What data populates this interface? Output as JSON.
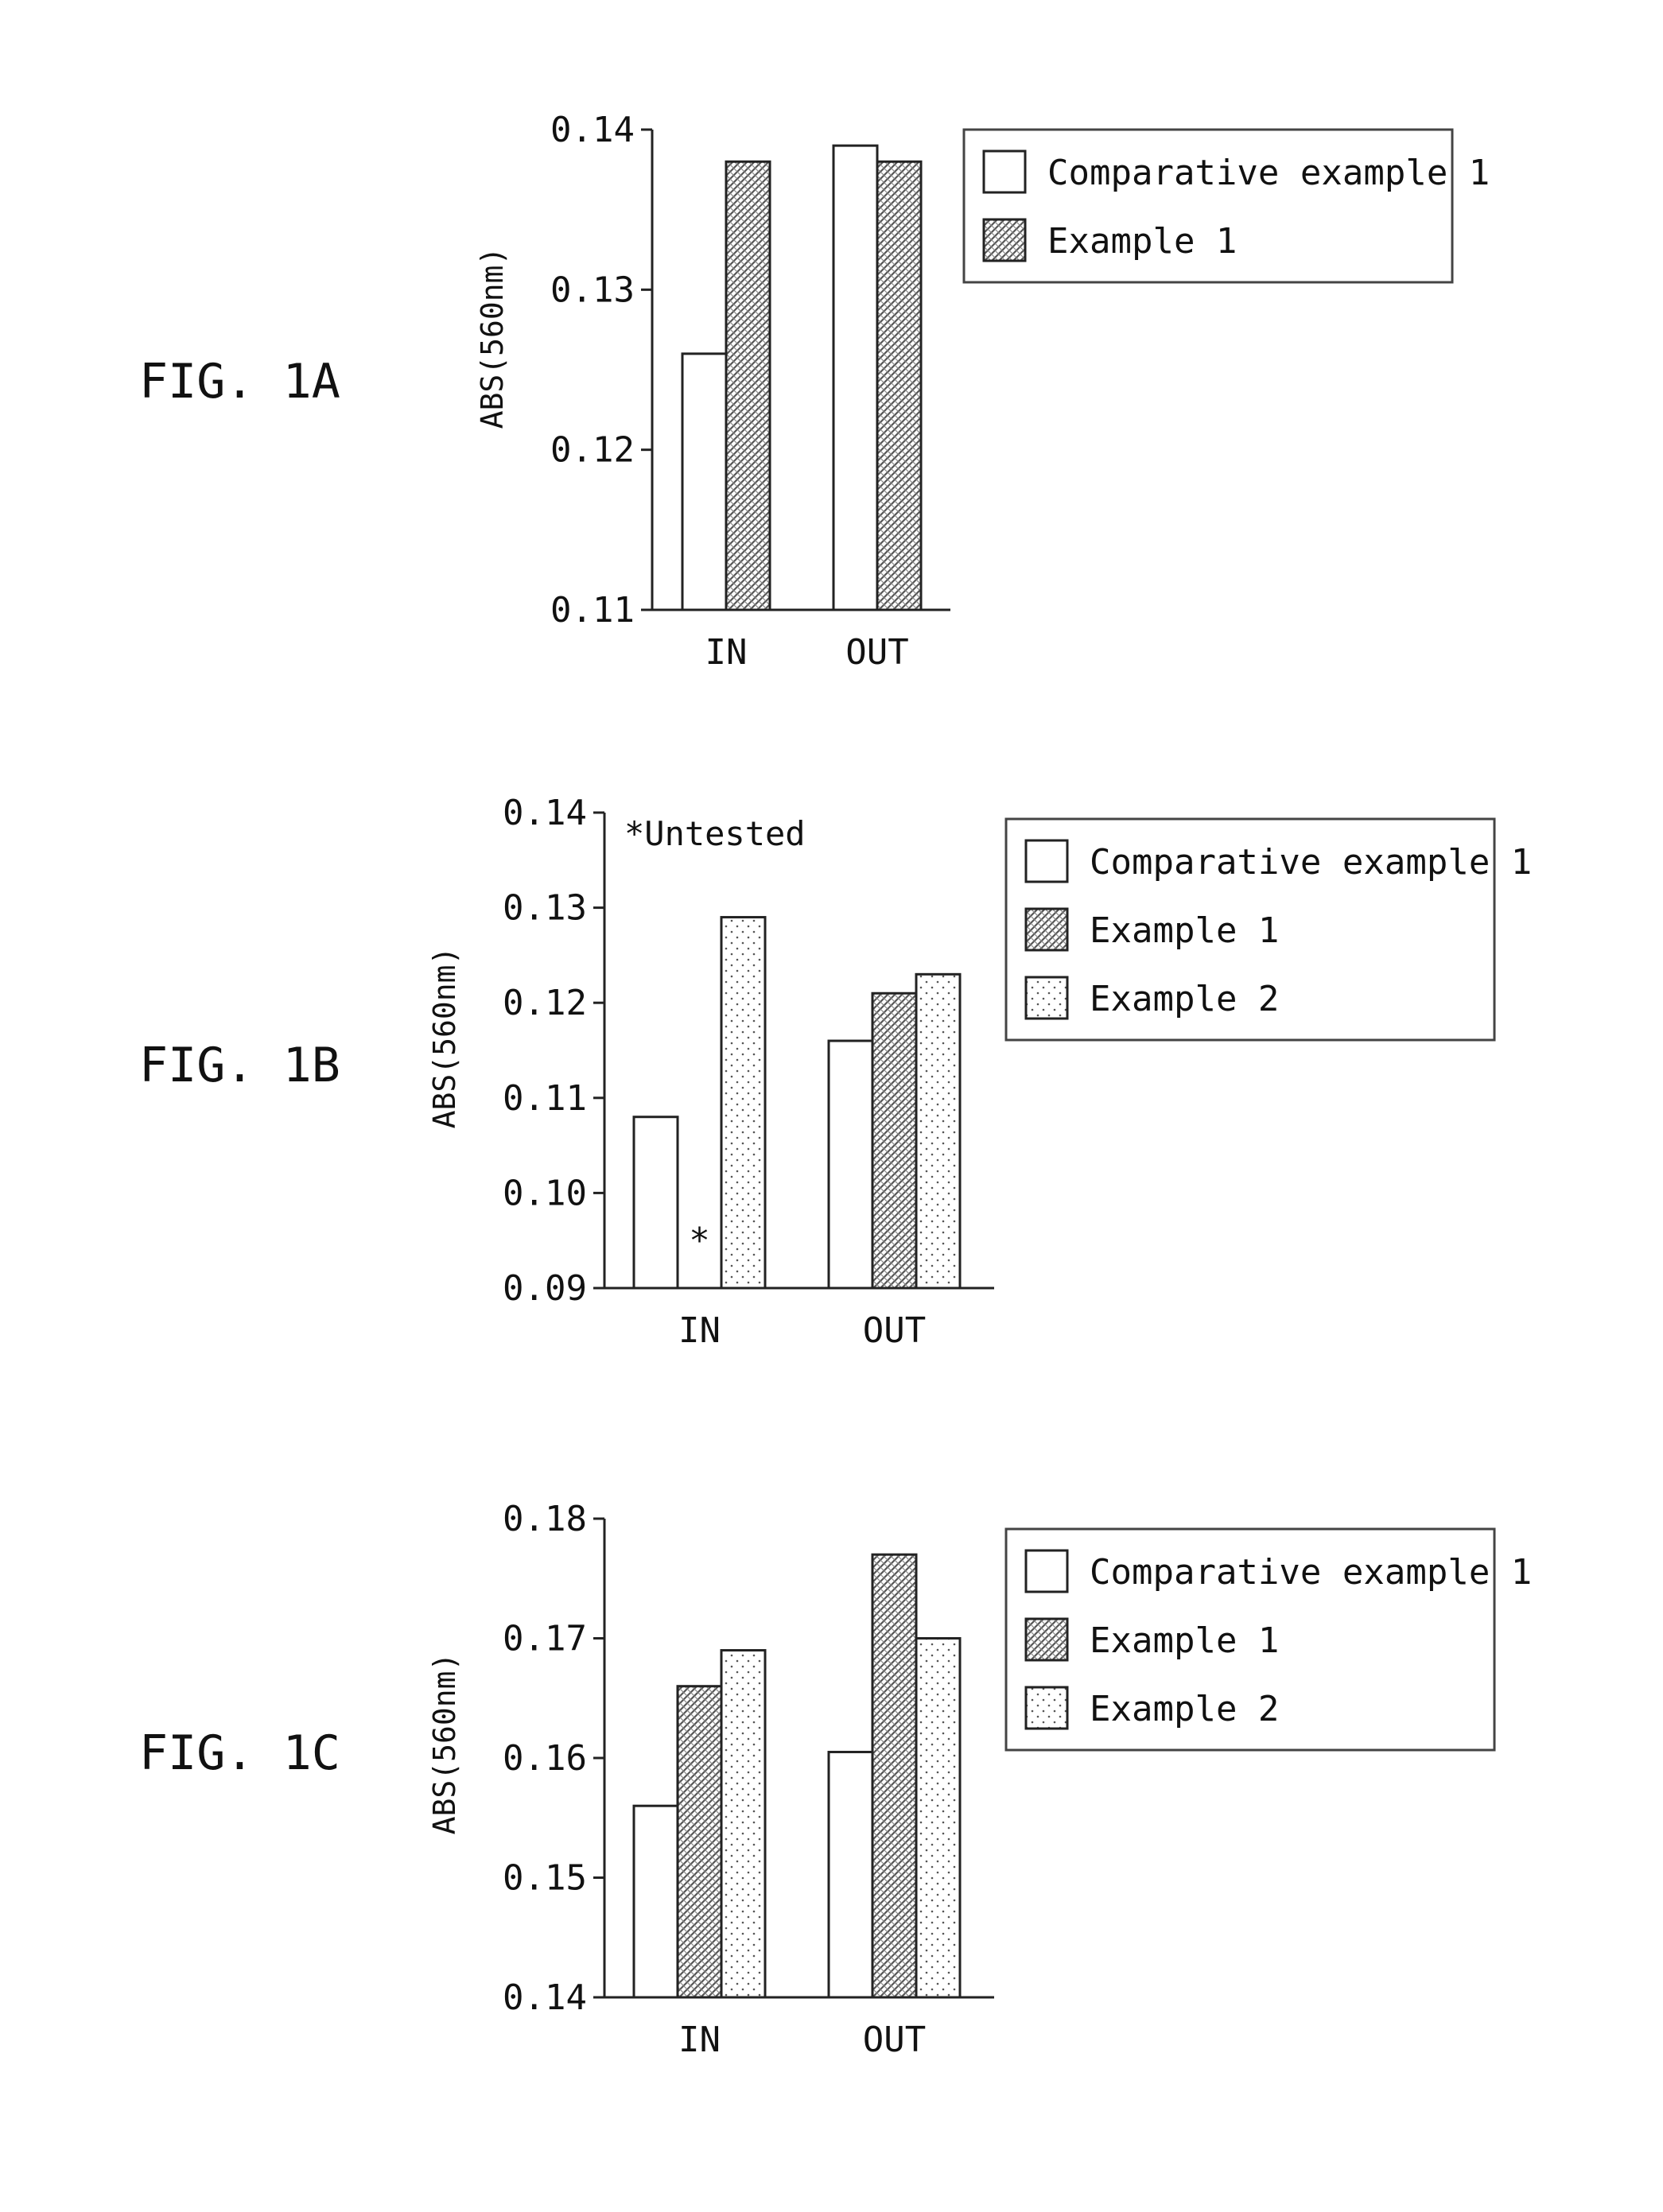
{
  "chart_data": [
    {
      "type": "bar",
      "figure_label": "FIG. 1A",
      "ylabel": "ABS(560nm)",
      "ylim": [
        0.11,
        0.14
      ],
      "yticks": [
        "0.14",
        "0.13",
        "0.12",
        "0.11"
      ],
      "categories": [
        "IN",
        "OUT"
      ],
      "series": [
        {
          "name": "Comparative example 1",
          "pattern": "blank",
          "values": [
            0.126,
            0.139
          ]
        },
        {
          "name": "Example 1",
          "pattern": "dense",
          "values": [
            0.138,
            0.138
          ]
        }
      ],
      "annotation": "",
      "legend_position": "right"
    },
    {
      "type": "bar",
      "figure_label": "FIG. 1B",
      "ylabel": "ABS(560nm)",
      "ylim": [
        0.09,
        0.14
      ],
      "yticks": [
        "0.14",
        "0.13",
        "0.12",
        "0.11",
        "0.10",
        "0.09"
      ],
      "categories": [
        "IN",
        "OUT"
      ],
      "series": [
        {
          "name": "Comparative example 1",
          "pattern": "blank",
          "values": [
            0.108,
            0.116
          ]
        },
        {
          "name": "Example 1",
          "pattern": "dense",
          "values": [
            null,
            0.121
          ]
        },
        {
          "name": "Example 2",
          "pattern": "sparse",
          "values": [
            0.129,
            0.123
          ]
        }
      ],
      "annotation": "*Untested",
      "missing_marker": "*",
      "legend_position": "right"
    },
    {
      "type": "bar",
      "figure_label": "FIG. 1C",
      "ylabel": "ABS(560nm)",
      "ylim": [
        0.14,
        0.18
      ],
      "yticks": [
        "0.18",
        "0.17",
        "0.16",
        "0.15",
        "0.14"
      ],
      "categories": [
        "IN",
        "OUT"
      ],
      "series": [
        {
          "name": "Comparative example 1",
          "pattern": "blank",
          "values": [
            0.156,
            0.1605
          ]
        },
        {
          "name": "Example 1",
          "pattern": "dense",
          "values": [
            0.166,
            0.177
          ]
        },
        {
          "name": "Example 2",
          "pattern": "sparse",
          "values": [
            0.169,
            0.17
          ]
        }
      ],
      "annotation": "",
      "legend_position": "right"
    }
  ]
}
